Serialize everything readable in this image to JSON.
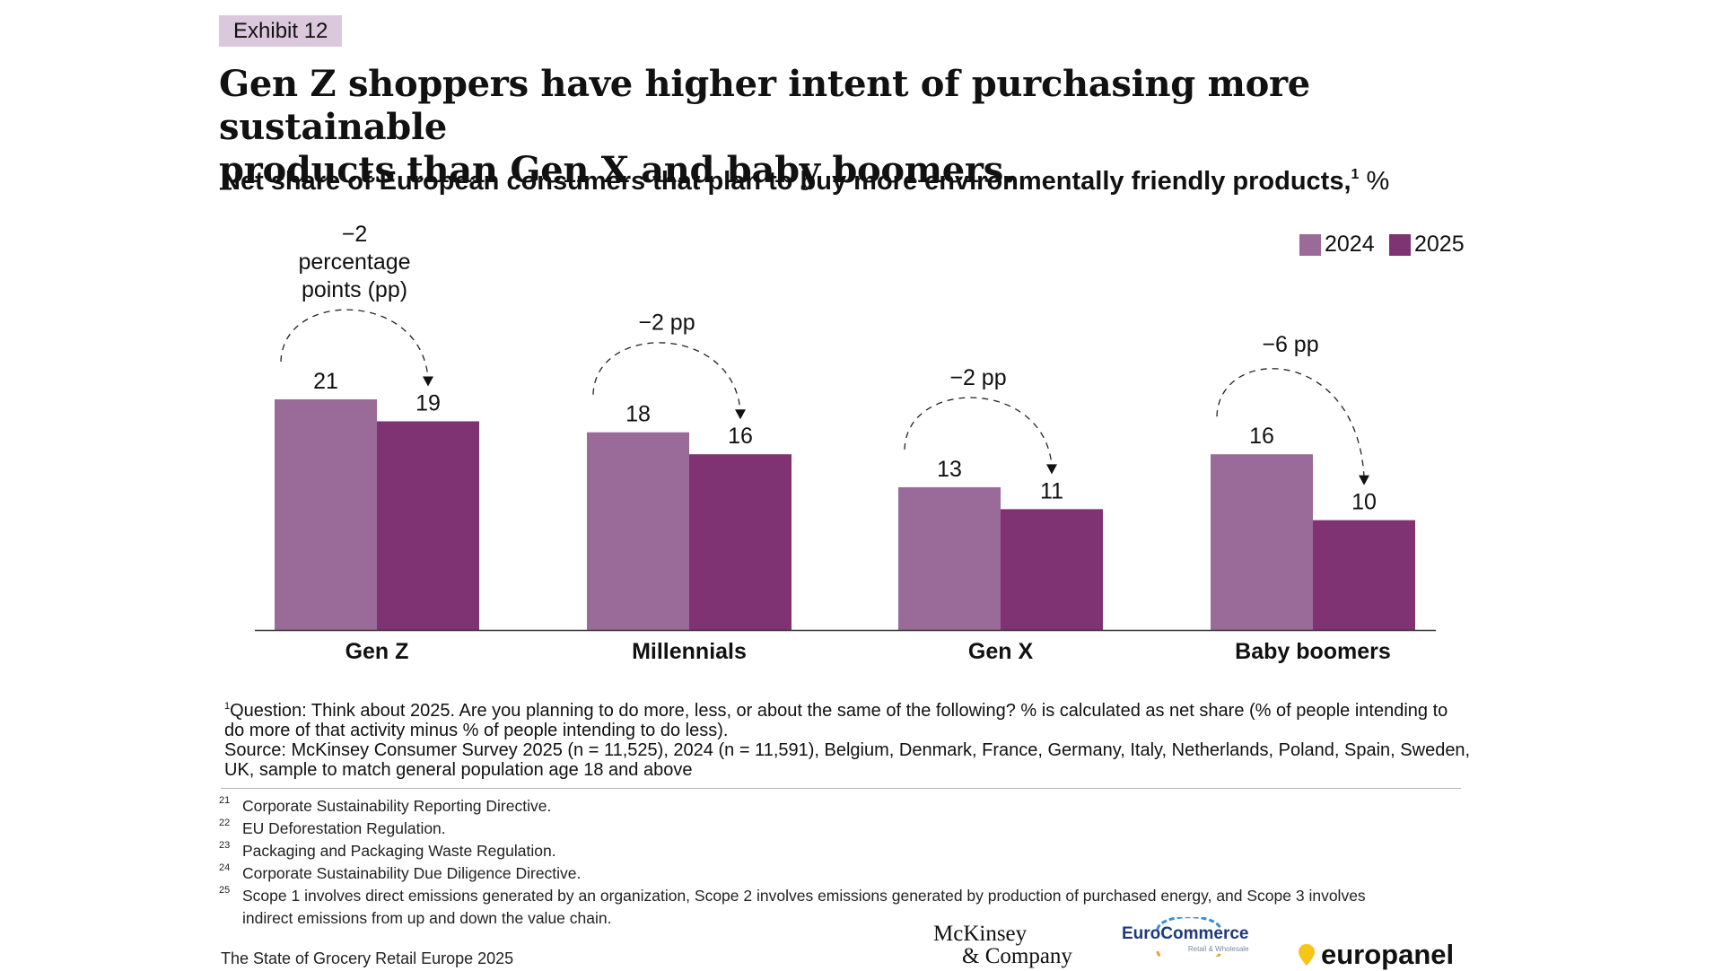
{
  "exhibit_label": "Exhibit 12",
  "title_line1": "Gen Z shoppers have higher intent of purchasing more sustainable",
  "title_line2": "products than Gen X and baby boomers.",
  "subtitle": "Net share of European consumers that plan to buy more environmentally friendly products,",
  "subtitle_sup": "1",
  "subtitle_unit": "%",
  "colors": {
    "y2024": "#9a6b98",
    "y2025": "#7f3372",
    "axis": "#333333"
  },
  "chart_data": {
    "type": "bar",
    "title": "Net share of European consumers that plan to buy more environmentally friendly products, %",
    "categories": [
      "Gen Z",
      "Millennials",
      "Gen X",
      "Baby boomers"
    ],
    "series": [
      {
        "name": "2024",
        "values": [
          21,
          18,
          13,
          16
        ]
      },
      {
        "name": "2025",
        "values": [
          19,
          16,
          11,
          10
        ]
      }
    ],
    "ylim": [
      0,
      21
    ],
    "xlabel": "",
    "ylabel": "%",
    "legend_position": "top-right",
    "grid": false,
    "annotations": [
      {
        "lines": [
          "−2",
          "percentage",
          "points (pp)"
        ]
      },
      {
        "lines": [
          "−2 pp"
        ]
      },
      {
        "lines": [
          "−2 pp"
        ]
      },
      {
        "lines": [
          "−6 pp"
        ]
      }
    ]
  },
  "note_sup": "1",
  "note_question": "Question: Think about 2025. Are you planning to do more, less, or about the same of the following? % is calculated as net share (% of people intending to do more of that activity minus % of people intending to do less).",
  "note_source": "Source: McKinsey Consumer Survey 2025 (n = 11,525), 2024 (n = 11,591), Belgium, Denmark, France, Germany, Italy, Netherlands, Poland, Spain, Sweden, UK, sample to match general population age 18 and above",
  "footnotes": [
    {
      "num": "21",
      "text": "Corporate Sustainability Reporting Directive."
    },
    {
      "num": "22",
      "text": "EU Deforestation Regulation."
    },
    {
      "num": "23",
      "text": "Packaging and Packaging Waste Regulation."
    },
    {
      "num": "24",
      "text": "Corporate Sustainability Due Diligence Directive."
    },
    {
      "num": "25",
      "text": "Scope 1 involves direct emissions generated by an organization, Scope 2 involves emissions generated by production of purchased energy, and Scope 3 involves",
      "text2": "indirect emissions from up and down the value chain."
    }
  ],
  "footer_text": "The State of Grocery Retail Europe 2025",
  "logos": {
    "mckinsey_line1": "McKinsey",
    "mckinsey_line2": "& Company",
    "eurocommerce": "EuroCommerce",
    "eurocommerce_sub": "Retail & Wholesale",
    "europanel": "europanel"
  }
}
